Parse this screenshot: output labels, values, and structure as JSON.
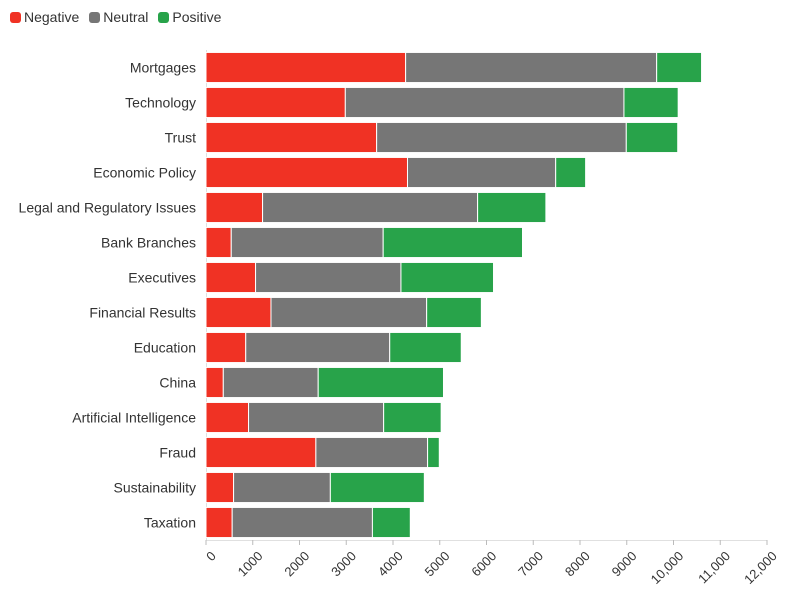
{
  "chart_data": {
    "type": "bar",
    "orientation": "horizontal",
    "stacked": true,
    "categories": [
      "Mortgages",
      "Technology",
      "Trust",
      "Economic Policy",
      "Legal and Regulatory Issues",
      "Bank Branches",
      "Executives",
      "Financial Results",
      "Education",
      "China",
      "Artificial Intelligence",
      "Fraud",
      "Sustainability",
      "Taxation"
    ],
    "series": [
      {
        "name": "Negative",
        "color": "#f03224",
        "values": [
          4270,
          2980,
          3650,
          4310,
          1210,
          540,
          1060,
          1390,
          850,
          370,
          910,
          2350,
          590,
          560
        ]
      },
      {
        "name": "Neutral",
        "color": "#767676",
        "values": [
          5370,
          5960,
          5340,
          3170,
          4600,
          3250,
          3110,
          3330,
          3080,
          2030,
          2890,
          2390,
          2070,
          3000
        ]
      },
      {
        "name": "Positive",
        "color": "#28a34a",
        "values": [
          960,
          1160,
          1100,
          640,
          1460,
          2980,
          1980,
          1170,
          1530,
          2680,
          1230,
          250,
          2010,
          810
        ]
      }
    ],
    "xlim": [
      0,
      12000
    ],
    "xticks": [
      "0",
      "1000",
      "2000",
      "3000",
      "4000",
      "5000",
      "6000",
      "7000",
      "8000",
      "9000",
      "10,000",
      "11,000",
      "12,000"
    ],
    "legend_position": "top-left",
    "grid": false
  }
}
